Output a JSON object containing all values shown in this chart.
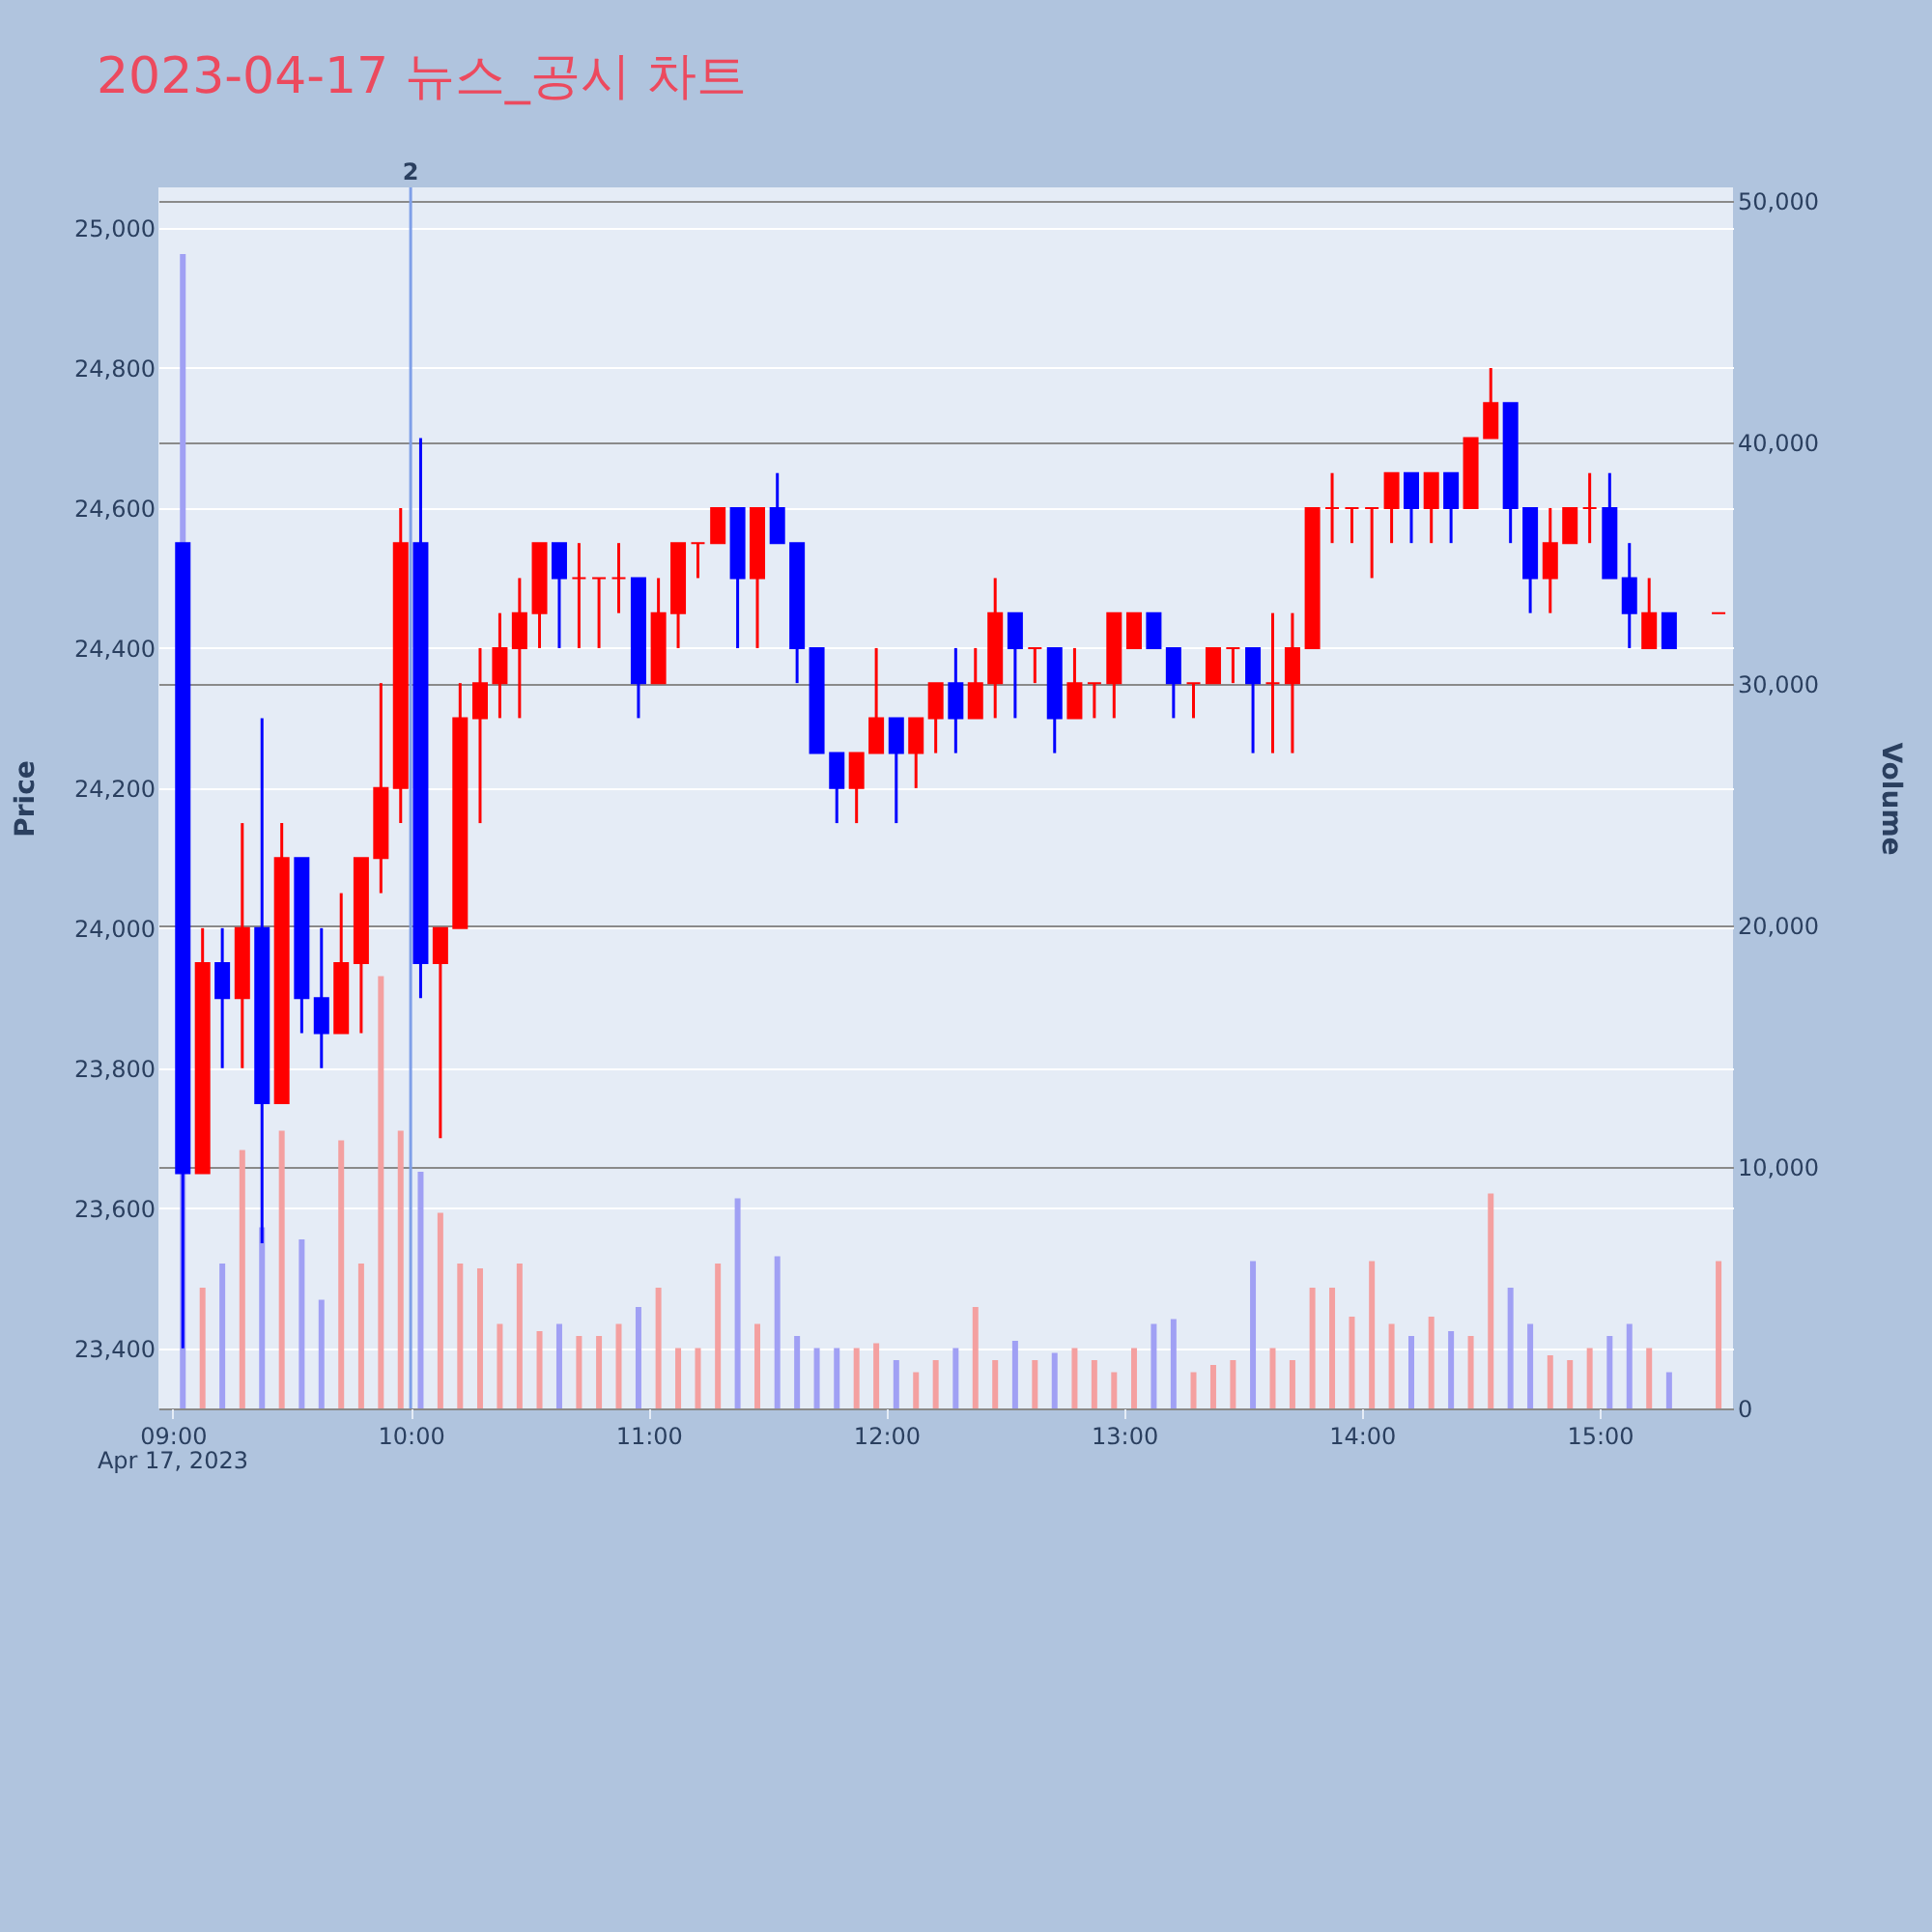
{
  "chart_data": {
    "type": "candlestick",
    "title": "2023-04-17 뉴스_공시 차트",
    "ylabel": "Price",
    "y2label": "Volume",
    "annotations": [
      "Apr 17, 2023",
      {
        "text": "2",
        "x": 10,
        "y": 25058
      }
    ],
    "x": [
      9.042,
      9.125,
      9.208,
      9.292,
      9.375,
      9.458,
      9.542,
      9.625,
      9.708,
      9.792,
      9.875,
      9.958,
      10.042,
      10.125,
      10.208,
      10.292,
      10.375,
      10.458,
      10.542,
      10.625,
      10.708,
      10.792,
      10.875,
      10.958,
      11.042,
      11.125,
      11.208,
      11.292,
      11.375,
      11.458,
      11.542,
      11.625,
      11.708,
      11.792,
      11.875,
      11.958,
      12.042,
      12.125,
      12.208,
      12.292,
      12.375,
      12.458,
      12.542,
      12.625,
      12.708,
      12.792,
      12.875,
      12.958,
      13.042,
      13.125,
      13.208,
      13.292,
      13.375,
      13.458,
      13.542,
      13.625,
      13.708,
      13.792,
      13.875,
      13.958,
      14.042,
      14.125,
      14.208,
      14.292,
      14.375,
      14.458,
      14.542,
      14.625,
      14.708,
      14.792,
      14.875,
      14.958,
      15.042,
      15.125,
      15.208,
      15.292,
      15.5
    ],
    "series": [
      {
        "type": "candlestick",
        "ohlc": [
          [
            24550,
            24550,
            23400,
            23650
          ],
          [
            23650,
            24000,
            23650,
            23950
          ],
          [
            23950,
            24000,
            23800,
            23900
          ],
          [
            23900,
            24150,
            23800,
            24000
          ],
          [
            24000,
            24300,
            23550,
            23750
          ],
          [
            23750,
            24150,
            23750,
            24100
          ],
          [
            24100,
            24100,
            23850,
            23900
          ],
          [
            23900,
            24000,
            23800,
            23850
          ],
          [
            23850,
            24050,
            23850,
            23950
          ],
          [
            23950,
            24100,
            23850,
            24100
          ],
          [
            24100,
            24350,
            24050,
            24200
          ],
          [
            24200,
            24600,
            24150,
            24550
          ],
          [
            24550,
            24700,
            23900,
            23950
          ],
          [
            23950,
            24000,
            23700,
            24000
          ],
          [
            24000,
            24350,
            24000,
            24300
          ],
          [
            24300,
            24400,
            24150,
            24350
          ],
          [
            24350,
            24450,
            24300,
            24400
          ],
          [
            24400,
            24500,
            24300,
            24450
          ],
          [
            24450,
            24550,
            24400,
            24550
          ],
          [
            24550,
            24550,
            24400,
            24500
          ],
          [
            24500,
            24550,
            24400,
            24500
          ],
          [
            24500,
            24500,
            24400,
            24500
          ],
          [
            24500,
            24550,
            24450,
            24500
          ],
          [
            24500,
            24500,
            24300,
            24350
          ],
          [
            24350,
            24500,
            24350,
            24450
          ],
          [
            24450,
            24550,
            24400,
            24550
          ],
          [
            24550,
            24550,
            24500,
            24550
          ],
          [
            24550,
            24600,
            24550,
            24600
          ],
          [
            24600,
            24600,
            24400,
            24500
          ],
          [
            24500,
            24600,
            24400,
            24600
          ],
          [
            24600,
            24650,
            24550,
            24550
          ],
          [
            24550,
            24550,
            24350,
            24400
          ],
          [
            24400,
            24400,
            24250,
            24250
          ],
          [
            24250,
            24250,
            24150,
            24200
          ],
          [
            24200,
            24250,
            24150,
            24250
          ],
          [
            24250,
            24400,
            24250,
            24300
          ],
          [
            24300,
            24300,
            24150,
            24250
          ],
          [
            24250,
            24300,
            24200,
            24300
          ],
          [
            24300,
            24350,
            24250,
            24350
          ],
          [
            24350,
            24400,
            24250,
            24300
          ],
          [
            24300,
            24400,
            24300,
            24350
          ],
          [
            24350,
            24500,
            24300,
            24450
          ],
          [
            24450,
            24450,
            24300,
            24400
          ],
          [
            24400,
            24400,
            24350,
            24400
          ],
          [
            24400,
            24400,
            24250,
            24300
          ],
          [
            24300,
            24400,
            24300,
            24350
          ],
          [
            24350,
            24350,
            24300,
            24350
          ],
          [
            24350,
            24450,
            24300,
            24450
          ],
          [
            24400,
            24450,
            24400,
            24450
          ],
          [
            24450,
            24450,
            24400,
            24400
          ],
          [
            24400,
            24400,
            24300,
            24350
          ],
          [
            24350,
            24350,
            24300,
            24350
          ],
          [
            24350,
            24400,
            24350,
            24400
          ],
          [
            24400,
            24400,
            24350,
            24400
          ],
          [
            24400,
            24400,
            24250,
            24350
          ],
          [
            24350,
            24450,
            24250,
            24350
          ],
          [
            24350,
            24450,
            24250,
            24400
          ],
          [
            24400,
            24600,
            24400,
            24600
          ],
          [
            24600,
            24650,
            24550,
            24600
          ],
          [
            24600,
            24600,
            24550,
            24600
          ],
          [
            24600,
            24600,
            24500,
            24600
          ],
          [
            24600,
            24650,
            24550,
            24650
          ],
          [
            24650,
            24650,
            24550,
            24600
          ],
          [
            24600,
            24650,
            24550,
            24650
          ],
          [
            24650,
            24650,
            24550,
            24600
          ],
          [
            24600,
            24700,
            24600,
            24700
          ],
          [
            24700,
            24800,
            24700,
            24750
          ],
          [
            24750,
            24750,
            24550,
            24600
          ],
          [
            24600,
            24600,
            24450,
            24500
          ],
          [
            24500,
            24600,
            24450,
            24550
          ],
          [
            24550,
            24600,
            24550,
            24600
          ],
          [
            24600,
            24650,
            24550,
            24600
          ],
          [
            24600,
            24650,
            24500,
            24500
          ],
          [
            24500,
            24550,
            24400,
            24450
          ],
          [
            24400,
            24500,
            24400,
            24450
          ],
          [
            24450,
            24450,
            24400,
            24400
          ],
          [
            24450,
            24450,
            24450,
            24450
          ]
        ],
        "colors": [
          "#0000ff",
          "#ff0000",
          "#0000ff",
          "#ff0000",
          "#0000ff",
          "#ff0000",
          "#0000ff",
          "#0000ff",
          "#ff0000",
          "#ff0000",
          "#ff0000",
          "#ff0000",
          "#0000ff",
          "#ff0000",
          "#ff0000",
          "#ff0000",
          "#ff0000",
          "#ff0000",
          "#ff0000",
          "#0000ff",
          "#ff0000",
          "#ff0000",
          "#ff0000",
          "#0000ff",
          "#ff0000",
          "#ff0000",
          "#ff0000",
          "#ff0000",
          "#0000ff",
          "#ff0000",
          "#0000ff",
          "#0000ff",
          "#0000ff",
          "#0000ff",
          "#ff0000",
          "#ff0000",
          "#0000ff",
          "#ff0000",
          "#ff0000",
          "#0000ff",
          "#ff0000",
          "#ff0000",
          "#0000ff",
          "#ff0000",
          "#0000ff",
          "#ff0000",
          "#ff0000",
          "#ff0000",
          "#ff0000",
          "#0000ff",
          "#0000ff",
          "#ff0000",
          "#ff0000",
          "#ff0000",
          "#0000ff",
          "#ff0000",
          "#ff0000",
          "#ff0000",
          "#ff0000",
          "#ff0000",
          "#ff0000",
          "#ff0000",
          "#0000ff",
          "#ff0000",
          "#0000ff",
          "#ff0000",
          "#ff0000",
          "#0000ff",
          "#0000ff",
          "#ff0000",
          "#ff0000",
          "#ff0000",
          "#0000ff",
          "#0000ff",
          "#ff0000",
          "#0000ff",
          "#ff0000"
        ]
      },
      {
        "type": "bar",
        "axis": "y2",
        "values": [
          47800,
          5000,
          6000,
          10700,
          7500,
          11500,
          7000,
          4500,
          11100,
          6000,
          17900,
          11500,
          9800,
          8100,
          6000,
          5800,
          3500,
          6000,
          3200,
          3500,
          3000,
          3000,
          3500,
          4200,
          5000,
          2500,
          2500,
          6000,
          8700,
          3500,
          6300,
          3000,
          2500,
          2500,
          2500,
          2700,
          2000,
          1500,
          2000,
          2500,
          4200,
          2000,
          2800,
          2000,
          2300,
          2500,
          2000,
          1500,
          2500,
          3500,
          3700,
          1500,
          1800,
          2000,
          6100,
          2500,
          2000,
          5000,
          5000,
          3800,
          6100,
          3500,
          3000,
          3800,
          3200,
          3000,
          8900,
          5000,
          3500,
          2200,
          2000,
          2500,
          3000,
          3500,
          2500,
          1500,
          6100
        ],
        "colors": [
          "#a0a0f4",
          "#f4a0a0",
          "#a0a0f4",
          "#f4a0a0",
          "#a0a0f4",
          "#f4a0a0",
          "#a0a0f4",
          "#a0a0f4",
          "#f4a0a0",
          "#f4a0a0",
          "#f4a0a0",
          "#f4a0a0",
          "#a0a0f4",
          "#f4a0a0",
          "#f4a0a0",
          "#f4a0a0",
          "#f4a0a0",
          "#f4a0a0",
          "#f4a0a0",
          "#a0a0f4",
          "#f4a0a0",
          "#f4a0a0",
          "#f4a0a0",
          "#a0a0f4",
          "#f4a0a0",
          "#f4a0a0",
          "#f4a0a0",
          "#f4a0a0",
          "#a0a0f4",
          "#f4a0a0",
          "#a0a0f4",
          "#a0a0f4",
          "#a0a0f4",
          "#a0a0f4",
          "#f4a0a0",
          "#f4a0a0",
          "#a0a0f4",
          "#f4a0a0",
          "#f4a0a0",
          "#a0a0f4",
          "#f4a0a0",
          "#f4a0a0",
          "#a0a0f4",
          "#f4a0a0",
          "#a0a0f4",
          "#f4a0a0",
          "#f4a0a0",
          "#f4a0a0",
          "#f4a0a0",
          "#a0a0f4",
          "#a0a0f4",
          "#f4a0a0",
          "#f4a0a0",
          "#f4a0a0",
          "#a0a0f4",
          "#f4a0a0",
          "#f4a0a0",
          "#f4a0a0",
          "#f4a0a0",
          "#f4a0a0",
          "#f4a0a0",
          "#f4a0a0",
          "#a0a0f4",
          "#f4a0a0",
          "#a0a0f4",
          "#f4a0a0",
          "#f4a0a0",
          "#a0a0f4",
          "#a0a0f4",
          "#f4a0a0",
          "#f4a0a0",
          "#f4a0a0",
          "#a0a0f4",
          "#a0a0f4",
          "#f4a0a0",
          "#a0a0f4",
          "#f4a0a0"
        ]
      }
    ],
    "xlim": [
      8.98,
      15.52
    ],
    "xticks": [
      {
        "value": 9,
        "label": "09:00"
      },
      {
        "value": 10,
        "label": "10:00"
      },
      {
        "value": 11,
        "label": "11:00"
      },
      {
        "value": 12,
        "label": "12:00"
      },
      {
        "value": 13,
        "label": "13:00"
      },
      {
        "value": 14,
        "label": "14:00"
      },
      {
        "value": 15,
        "label": "15:00"
      }
    ],
    "ylim": [
      23314,
      25058
    ],
    "yticks": [
      {
        "value": 23400,
        "label": "23,400"
      },
      {
        "value": 23600,
        "label": "23,600"
      },
      {
        "value": 23800,
        "label": "23,800"
      },
      {
        "value": 24000,
        "label": "24,000"
      },
      {
        "value": 24200,
        "label": "24,200"
      },
      {
        "value": 24400,
        "label": "24,400"
      },
      {
        "value": 24600,
        "label": "24,600"
      },
      {
        "value": 24800,
        "label": "24,800"
      },
      {
        "value": 25000,
        "label": "25,000"
      }
    ],
    "y2lim": [
      0,
      50560
    ],
    "y2ticks": [
      0,
      {
        "value": 10000,
        "label": "10,000"
      },
      {
        "value": 20000,
        "label": "20,000"
      },
      {
        "value": 30000,
        "label": "30,000"
      },
      {
        "value": 40000,
        "label": "40,000"
      },
      {
        "value": 50000,
        "label": "50,000"
      }
    ],
    "ref_lines": [
      {
        "axis": "x",
        "value": 10,
        "color": "#7f9fe8"
      }
    ],
    "grid": true
  }
}
